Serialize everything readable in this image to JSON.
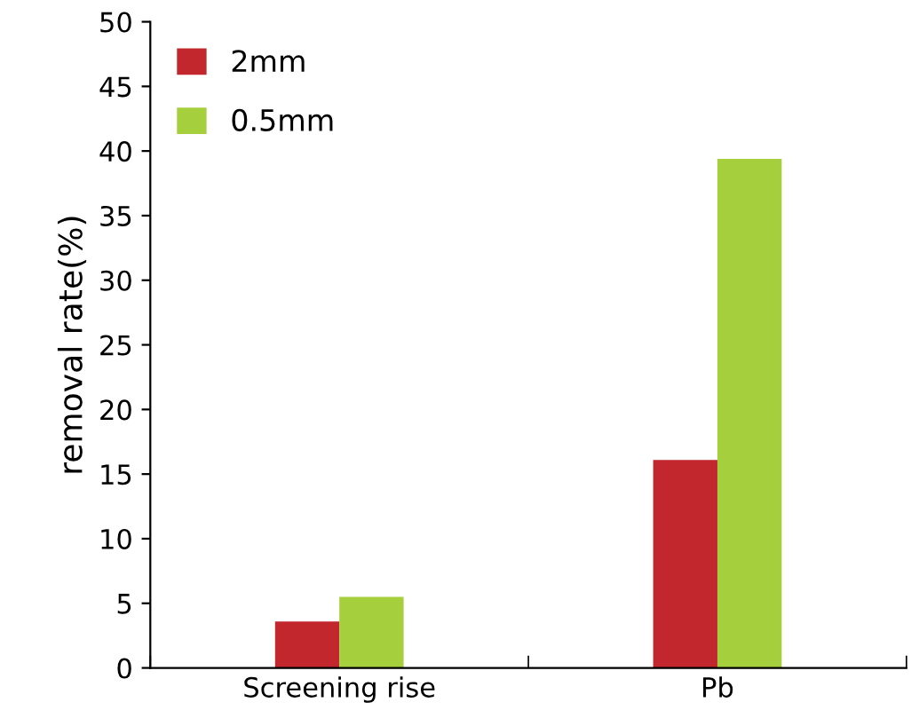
{
  "chart_data": {
    "type": "bar",
    "ylabel": "removal rate(%)",
    "categories": [
      "Screening rise",
      "Pb"
    ],
    "series": [
      {
        "name": "2mm",
        "color": "#c1272d",
        "values": [
          3.6,
          16.1
        ]
      },
      {
        "name": "0.5mm",
        "color": "#a5cf3c",
        "values": [
          5.5,
          39.4
        ]
      }
    ],
    "ylim": [
      0,
      50
    ],
    "yticks": [
      0,
      5,
      10,
      15,
      20,
      25,
      30,
      35,
      40,
      45,
      50
    ],
    "grid": false,
    "legend": "top left"
  }
}
